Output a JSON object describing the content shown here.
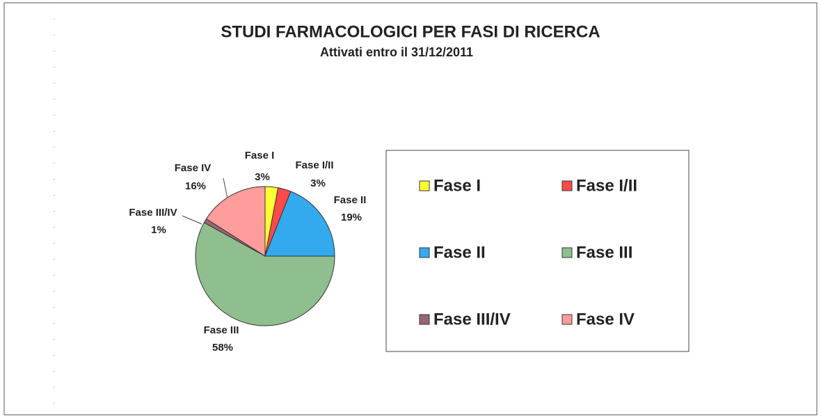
{
  "chart_data": {
    "type": "pie",
    "title": "STUDI FARMACOLOGICI PER FASI DI RICERCA",
    "subtitle": "Attivati entro il 31/12/2011",
    "categories": [
      "Fase I",
      "Fase I/II",
      "Fase II",
      "Fase III",
      "Fase III/IV",
      "Fase IV"
    ],
    "values": [
      3,
      3,
      19,
      58,
      1,
      16
    ],
    "value_labels": [
      "3%",
      "3%",
      "19%",
      "58%",
      "1%",
      "16%"
    ],
    "colors": [
      "#ffff33",
      "#ff4a4a",
      "#33aaee",
      "#8fbf8f",
      "#9a6676",
      "#ff9c9c"
    ],
    "legend": "right"
  }
}
